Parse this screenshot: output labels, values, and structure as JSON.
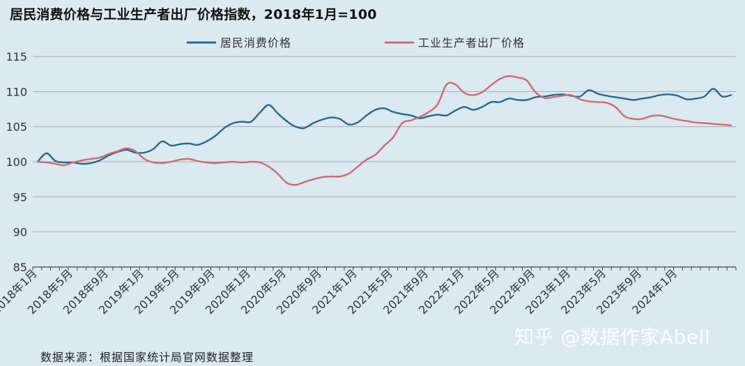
{
  "title": "居民消费价格与工业生产者出厂价格指数，2018年1月=100",
  "source": "数据来源：根据国家统计局官网数据整理",
  "watermark": "知乎 @数据作家Abell",
  "colors": {
    "cpi": "#1f6a9a",
    "ppi": "#d26a6a",
    "grid": "#a9a9a9",
    "axis": "#444444",
    "background": "#dbe9f1"
  },
  "chart_data": {
    "type": "line",
    "title": "居民消费价格与工业生产者出厂价格指数，2018年1月=100",
    "xlabel": "",
    "ylabel": "",
    "ylim": [
      85,
      115
    ],
    "yticks": [
      85,
      90,
      95,
      100,
      105,
      110,
      115
    ],
    "grid": true,
    "legend_position": "top-center",
    "x_tick_labels": [
      "2018年1月",
      "2018年5月",
      "2018年9月",
      "2019年1月",
      "2019年5月",
      "2019年9月",
      "2020年1月",
      "2020年5月",
      "2020年9月",
      "2021年1月",
      "2021年5月",
      "2021年9月",
      "2022年1月",
      "2022年5月",
      "2022年9月",
      "2023年1月",
      "2023年5月",
      "2023年9月",
      "2024年1月"
    ],
    "x_tick_step_months": 4,
    "series": [
      {
        "name": "居民消费价格",
        "color": "#1f6a9a",
        "values": [
          100.0,
          101.2,
          100.1,
          99.9,
          99.9,
          99.7,
          99.8,
          100.2,
          100.9,
          101.4,
          101.7,
          101.3,
          101.3,
          101.8,
          102.9,
          102.3,
          102.5,
          102.6,
          102.4,
          102.9,
          103.7,
          104.8,
          105.5,
          105.7,
          105.7,
          107.0,
          108.1,
          106.9,
          105.8,
          105.0,
          104.8,
          105.5,
          106.0,
          106.3,
          106.1,
          105.3,
          105.6,
          106.6,
          107.4,
          107.6,
          107.1,
          106.8,
          106.6,
          106.2,
          106.5,
          106.7,
          106.6,
          107.3,
          107.8,
          107.4,
          107.8,
          108.5,
          108.5,
          109.0,
          108.8,
          108.8,
          109.2,
          109.3,
          109.5,
          109.6,
          109.4,
          109.3,
          110.2,
          109.7,
          109.4,
          109.2,
          109.0,
          108.8,
          109.0,
          109.2,
          109.5,
          109.6,
          109.4,
          108.9,
          109.0,
          109.3,
          110.4,
          109.3,
          109.5
        ]
      },
      {
        "name": "工业生产者出厂价格",
        "color": "#d26a6a",
        "values": [
          100.0,
          99.9,
          99.7,
          99.5,
          99.9,
          100.2,
          100.4,
          100.6,
          101.1,
          101.5,
          101.9,
          101.5,
          100.4,
          99.9,
          99.8,
          100.0,
          100.3,
          100.4,
          100.1,
          99.9,
          99.8,
          99.9,
          100.0,
          99.9,
          100.0,
          99.9,
          99.3,
          98.3,
          97.0,
          96.7,
          97.1,
          97.5,
          97.8,
          97.9,
          97.9,
          98.3,
          99.3,
          100.3,
          101.0,
          102.3,
          103.5,
          105.5,
          105.9,
          106.4,
          107.1,
          108.2,
          111.0,
          111.0,
          109.8,
          109.5,
          109.9,
          110.9,
          111.8,
          112.2,
          112.0,
          111.6,
          109.9,
          109.1,
          109.2,
          109.4,
          109.5,
          108.9,
          108.6,
          108.5,
          108.4,
          107.8,
          106.5,
          106.1,
          106.1,
          106.5,
          106.6,
          106.3,
          106.0,
          105.8,
          105.6,
          105.5,
          105.4,
          105.3,
          105.2
        ]
      }
    ]
  }
}
